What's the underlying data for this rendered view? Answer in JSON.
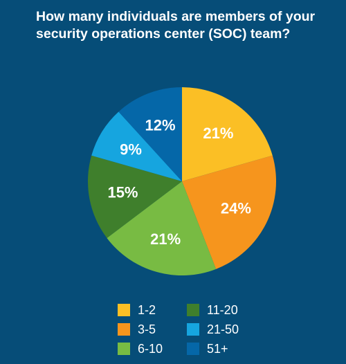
{
  "chart_data": {
    "type": "pie",
    "title": "How many individuals are members of your security operations center (SOC) team?",
    "categories": [
      "1-2",
      "3-5",
      "6-10",
      "11-20",
      "21-50",
      "51+"
    ],
    "values": [
      21,
      24,
      21,
      15,
      9,
      12
    ],
    "value_labels": [
      "21%",
      "24%",
      "21%",
      "15%",
      "9%",
      "12%"
    ],
    "colors": [
      "#fbbf25",
      "#f6951d",
      "#78bb43",
      "#3f7f2c",
      "#16a5df",
      "#0567a8"
    ],
    "legend_placement": "bottom",
    "legend": [
      {
        "label": "1-2",
        "color": "#fbbf25"
      },
      {
        "label": "11-20",
        "color": "#3f7f2c"
      },
      {
        "label": "3-5",
        "color": "#f6951d"
      },
      {
        "label": "21-50",
        "color": "#16a5df"
      },
      {
        "label": "6-10",
        "color": "#78bb43"
      },
      {
        "label": "51+",
        "color": "#0567a8"
      }
    ]
  }
}
